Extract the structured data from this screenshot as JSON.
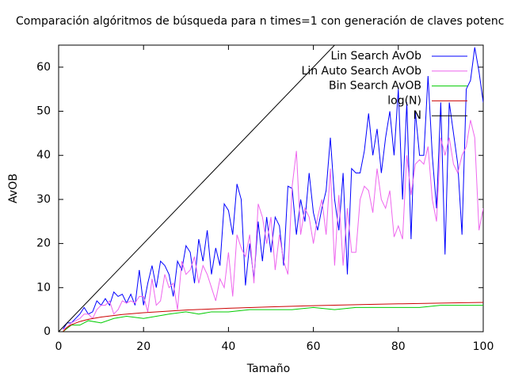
{
  "chart_data": {
    "type": "line",
    "title": "Comparación algóritmos de búsqueda para n times=1 con generación de claves potenc",
    "x_label": "Tamaño",
    "y_label": "AvOB",
    "xlim": [
      0,
      100
    ],
    "ylim": [
      0,
      65
    ],
    "xticks": [
      0,
      20,
      40,
      60,
      80,
      100
    ],
    "yticks": [
      0,
      10,
      20,
      30,
      40,
      50,
      60
    ],
    "legend": "top-right",
    "series": [
      {
        "name": "Lin Search AvOb",
        "color": "#0000ff",
        "x": [
          1,
          2,
          3,
          4,
          5,
          6,
          7,
          8,
          9,
          10,
          11,
          12,
          13,
          14,
          15,
          16,
          17,
          18,
          19,
          20,
          21,
          22,
          23,
          24,
          25,
          26,
          27,
          28,
          29,
          30,
          31,
          32,
          33,
          34,
          35,
          36,
          37,
          38,
          39,
          40,
          41,
          42,
          43,
          44,
          45,
          46,
          47,
          48,
          49,
          50,
          51,
          52,
          53,
          54,
          55,
          56,
          57,
          58,
          59,
          60,
          61,
          62,
          63,
          64,
          65,
          66,
          67,
          68,
          69,
          70,
          71,
          72,
          73,
          74,
          75,
          76,
          77,
          78,
          79,
          80,
          81,
          82,
          83,
          84,
          85,
          86,
          87,
          88,
          89,
          90,
          91,
          92,
          93,
          94,
          95,
          96,
          97,
          98,
          99,
          100
        ],
        "values": [
          0.5,
          2,
          2,
          3,
          4,
          5.5,
          4,
          4.5,
          7,
          6,
          7.5,
          6,
          9,
          8,
          8.5,
          6.5,
          8.5,
          6,
          14,
          6,
          11,
          15,
          10,
          16,
          15,
          13,
          8,
          16,
          14,
          19.5,
          18,
          11,
          21,
          16,
          23,
          13,
          19,
          15,
          29,
          27.5,
          22,
          33.5,
          30,
          10.5,
          20,
          12,
          25,
          16,
          26,
          18,
          26,
          24,
          15,
          33,
          32.5,
          22,
          30,
          25,
          36,
          27,
          23,
          28,
          32,
          44,
          30,
          23,
          36,
          13,
          37,
          36,
          36,
          41,
          49.5,
          40,
          46,
          36,
          44,
          50,
          40,
          55,
          30,
          52,
          21,
          50,
          40,
          40,
          58,
          40,
          28,
          52,
          17.5,
          52,
          45,
          38,
          22,
          55,
          57,
          64.5,
          59,
          52
        ]
      },
      {
        "name": "Lin Auto Search AvOb",
        "color": "#ee66ee",
        "x": [
          1,
          2,
          3,
          4,
          5,
          6,
          7,
          8,
          9,
          10,
          11,
          12,
          13,
          14,
          15,
          16,
          17,
          18,
          19,
          20,
          21,
          22,
          23,
          24,
          25,
          26,
          27,
          28,
          29,
          30,
          31,
          32,
          33,
          34,
          35,
          36,
          37,
          38,
          39,
          40,
          41,
          42,
          43,
          44,
          45,
          46,
          47,
          48,
          49,
          50,
          51,
          52,
          53,
          54,
          55,
          56,
          57,
          58,
          59,
          60,
          61,
          62,
          63,
          64,
          65,
          66,
          67,
          68,
          69,
          70,
          71,
          72,
          73,
          74,
          75,
          76,
          77,
          78,
          79,
          80,
          81,
          82,
          83,
          84,
          85,
          86,
          87,
          88,
          89,
          90,
          91,
          92,
          93,
          94,
          95,
          96,
          97,
          98,
          99,
          100
        ],
        "values": [
          0.5,
          1,
          2,
          2.5,
          3,
          4,
          4,
          3,
          5,
          6,
          6,
          7,
          4,
          5,
          7,
          6.5,
          7,
          6.5,
          8,
          8,
          4.5,
          12,
          6,
          7,
          13,
          10,
          11,
          5,
          16,
          13,
          14,
          17,
          11,
          15,
          13,
          10,
          7,
          12,
          10,
          18,
          8,
          22,
          19,
          17,
          22,
          11,
          29,
          26,
          20,
          26,
          14,
          22,
          16,
          13,
          33,
          41,
          22,
          28,
          26,
          20,
          26,
          30,
          22,
          37,
          15,
          31,
          15,
          28,
          18,
          18,
          30,
          33,
          32,
          27,
          37,
          30,
          28,
          32,
          21.5,
          24,
          21,
          40,
          31,
          38,
          39,
          38,
          42,
          30,
          25,
          44,
          40,
          44,
          38,
          36,
          40,
          42,
          48,
          44,
          23,
          28
        ]
      },
      {
        "name": "Bin Search AvOB",
        "color": "#00cc00",
        "x": [
          1,
          3,
          5,
          7,
          10,
          13,
          16,
          20,
          23,
          26,
          30,
          33,
          36,
          40,
          45,
          50,
          55,
          60,
          65,
          70,
          75,
          80,
          85,
          90,
          95,
          100
        ],
        "values": [
          0,
          1.5,
          1.5,
          2.5,
          2,
          3,
          3.5,
          3,
          3.5,
          4,
          4.5,
          4,
          4.5,
          4.5,
          5,
          5,
          5,
          5.5,
          5,
          5.5,
          5.5,
          5.5,
          5.5,
          6,
          6,
          6
        ]
      },
      {
        "name": "log(N)",
        "color": "#cc0000",
        "x": [
          1,
          2,
          3,
          5,
          7,
          10,
          15,
          20,
          30,
          40,
          50,
          60,
          70,
          80,
          90,
          100
        ],
        "values": [
          0,
          1,
          1.58,
          2.32,
          2.81,
          3.32,
          3.91,
          4.32,
          4.91,
          5.32,
          5.64,
          5.91,
          6.13,
          6.32,
          6.49,
          6.64
        ]
      },
      {
        "name": "N",
        "color": "#000000",
        "x": [
          0,
          100
        ],
        "values": [
          0,
          100
        ]
      }
    ]
  }
}
